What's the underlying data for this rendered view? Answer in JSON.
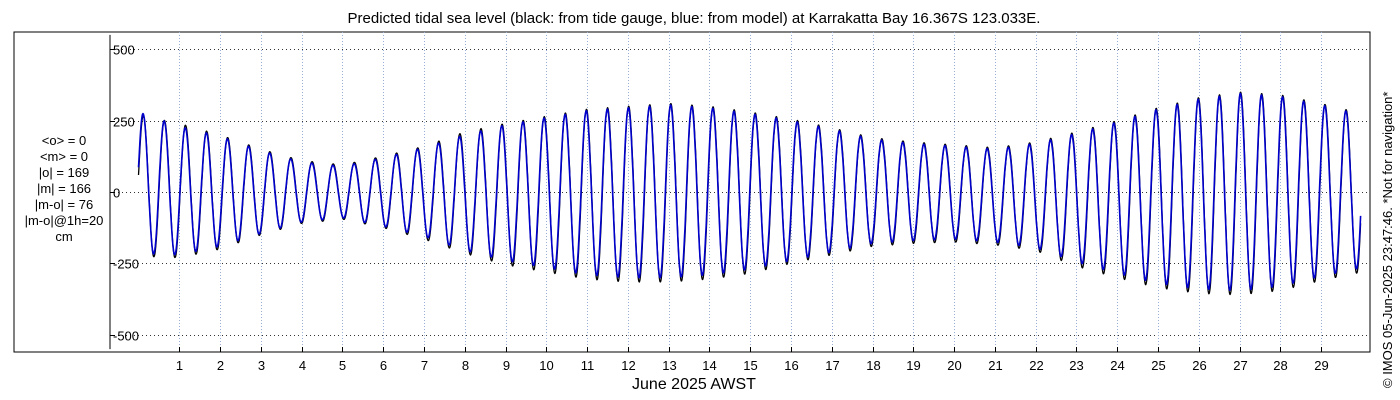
{
  "chart_data": {
    "type": "line",
    "title": "Predicted tidal sea level (black: from tide gauge, blue: from model) at Karrakatta Bay 16.367S 123.033E.",
    "xlabel": "June 2025 AWST",
    "ylabel": "",
    "xlim": [
      -0.7,
      30.2
    ],
    "ylim": [
      -560,
      560
    ],
    "yticks": [
      -500,
      -250,
      0,
      250,
      500
    ],
    "ytick_labels": [
      "-500",
      "-250",
      "0",
      "250",
      "500"
    ],
    "xticks": [
      1,
      2,
      3,
      4,
      5,
      6,
      7,
      8,
      9,
      10,
      11,
      12,
      13,
      14,
      15,
      16,
      17,
      18,
      19,
      20,
      21,
      22,
      23,
      24,
      25,
      26,
      27,
      28,
      29
    ],
    "xtick_labels": [
      "1",
      "2",
      "3",
      "4",
      "5",
      "6",
      "7",
      "8",
      "9",
      "10",
      "11",
      "12",
      "13",
      "14",
      "15",
      "16",
      "17",
      "18",
      "19",
      "20",
      "21",
      "22",
      "23",
      "24",
      "25",
      "26",
      "27",
      "28",
      "29"
    ],
    "grid": true,
    "units": "cm",
    "series": [
      {
        "name": "from tide gauge",
        "color": "#000000",
        "x": [
          0.0,
          1.0,
          2.0,
          3.0,
          4.0,
          5.0,
          6.0,
          7.0,
          8.0,
          9.0,
          10.0,
          11.0,
          12.0,
          13.0,
          14.0,
          15.0,
          16.0,
          17.0,
          18.0,
          19.0,
          20.0,
          21.0,
          22.0,
          23.0,
          24.0,
          25.0,
          26.0,
          27.0,
          28.0,
          29.0,
          30.0
        ],
        "high": [
          270,
          240,
          200,
          150,
          110,
          95,
          125,
          160,
          210,
          240,
          265,
          290,
          300,
          310,
          300,
          280,
          255,
          225,
          190,
          175,
          165,
          155,
          175,
          210,
          250,
          295,
          330,
          350,
          340,
          310,
          275
        ],
        "low": [
          -225,
          -230,
          -200,
          -150,
          -110,
          -95,
          -125,
          -165,
          -215,
          -255,
          -280,
          -305,
          -315,
          -315,
          -305,
          -285,
          -250,
          -220,
          -190,
          -180,
          -175,
          -185,
          -205,
          -260,
          -300,
          -335,
          -355,
          -360,
          -345,
          -310,
          -280
        ]
      },
      {
        "name": "from model",
        "color": "#0000cc",
        "x": [
          0.0,
          1.0,
          2.0,
          3.0,
          4.0,
          5.0,
          6.0,
          7.0,
          8.0,
          9.0,
          10.0,
          11.0,
          12.0,
          13.0,
          14.0,
          15.0,
          16.0,
          17.0,
          18.0,
          19.0,
          20.0,
          21.0,
          22.0,
          23.0,
          24.0,
          25.0,
          26.0,
          27.0,
          28.0,
          29.0,
          30.0
        ],
        "high": [
          280,
          230,
          195,
          145,
          105,
          90,
          120,
          155,
          200,
          235,
          260,
          285,
          295,
          305,
          295,
          275,
          250,
          220,
          185,
          170,
          160,
          150,
          170,
          205,
          245,
          290,
          325,
          345,
          335,
          305,
          270
        ],
        "low": [
          -215,
          -220,
          -190,
          -145,
          -105,
          -90,
          -120,
          -155,
          -205,
          -240,
          -265,
          -290,
          -300,
          -300,
          -290,
          -270,
          -240,
          -210,
          -180,
          -170,
          -165,
          -175,
          -195,
          -245,
          -285,
          -320,
          -340,
          -345,
          -330,
          -295,
          -265
        ]
      }
    ]
  },
  "stats": {
    "mean_obs": "<o> = 0",
    "mean_model": "<m> = 0",
    "abs_obs": "|o| = 169",
    "abs_model": "|m| = 166",
    "abs_diff": "|m-o| = 76",
    "abs_diff_1h": "|m-o|@1h=20",
    "units": "cm"
  },
  "copyright": "© IMOS 05-Jun-2025 23:47:46. *Not for navigation*"
}
